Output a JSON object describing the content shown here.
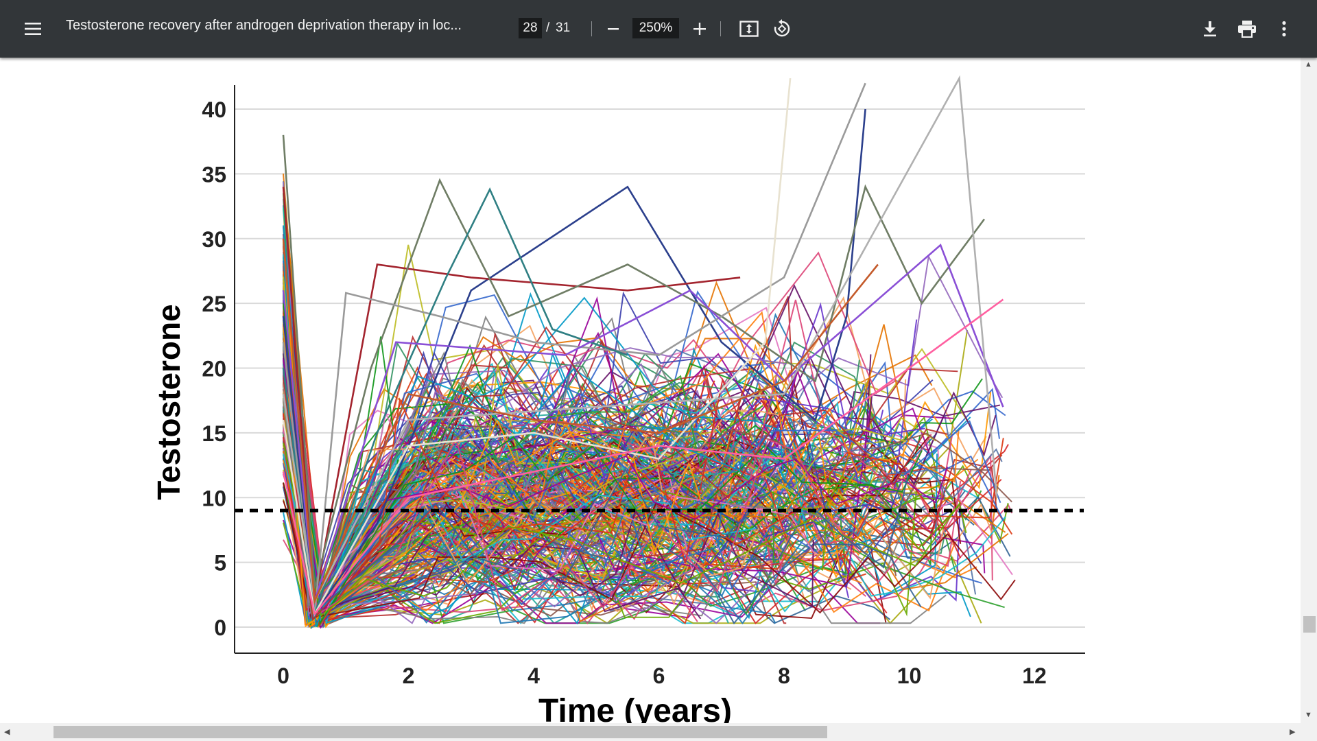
{
  "toolbar": {
    "menu_icon": "hamburger-menu-icon",
    "title": "Testosterone recovery after androgen deprivation therapy in loc...",
    "current_page": "28",
    "page_separator": "/",
    "total_pages": "31",
    "zoom_level": "250%",
    "zoom_out_icon": "minus-icon",
    "zoom_in_icon": "plus-icon",
    "fit_icon": "fit-to-page-icon",
    "rotate_icon": "rotate-icon",
    "download_icon": "download-icon",
    "print_icon": "print-icon",
    "more_icon": "more-vertical-icon",
    "color": "#323639"
  },
  "chart_data": {
    "type": "line",
    "title": "",
    "xlabel": "Time (years)",
    "ylabel": "Testosterone",
    "xlim": [
      -0.8,
      12.8
    ],
    "ylim": [
      -2,
      41
    ],
    "x_ticks": [
      "0",
      "2",
      "4",
      "6",
      "8",
      "10",
      "12"
    ],
    "y_ticks": [
      "0",
      "5",
      "10",
      "15",
      "20",
      "25",
      "30",
      "35",
      "40"
    ],
    "grid": "horizontal",
    "reference_line": {
      "y": 9,
      "style": "dashed",
      "color": "#000000"
    },
    "series_note_count": 320,
    "highlight_series": [
      {
        "color": "#2b3f8c",
        "x": [
          0,
          0.5,
          1.5,
          3,
          5.5,
          7,
          8.5,
          9,
          9.3
        ],
        "y": [
          24,
          1,
          8,
          26,
          34,
          22,
          16,
          24,
          40
        ]
      },
      {
        "color": "#a3242e",
        "x": [
          0,
          0.5,
          1.5,
          3,
          5.5,
          7.3
        ],
        "y": [
          34,
          2,
          28,
          27,
          26,
          27
        ]
      },
      {
        "color": "#6f7d65",
        "x": [
          0,
          0.5,
          1.4,
          2.5,
          3.6,
          5.5,
          7,
          8.5,
          9.3,
          10.2,
          11.2
        ],
        "y": [
          38,
          3,
          20,
          34.5,
          24,
          28,
          24,
          19,
          34,
          25,
          31.5
        ]
      },
      {
        "color": "#9a9a9a",
        "x": [
          0,
          0.5,
          1,
          2.5,
          4,
          6,
          8,
          9.3
        ],
        "y": [
          22,
          1,
          25.8,
          24,
          22,
          21,
          27,
          42
        ]
      },
      {
        "color": "#2f7f83",
        "x": [
          0,
          0.5,
          1.5,
          2.6,
          3.3,
          4.3,
          5.5
        ],
        "y": [
          20,
          1,
          15,
          27,
          33.8,
          23,
          21
        ]
      },
      {
        "color": "#8a4fd6",
        "x": [
          0,
          0.5,
          1.8,
          4.5,
          6.5,
          8,
          10.5,
          11.5
        ],
        "y": [
          26,
          2,
          22,
          21,
          26,
          19,
          29.5,
          17
        ]
      },
      {
        "color": "#b0b0b0",
        "x": [
          0,
          0.5,
          2,
          5,
          8,
          10.8,
          11.4
        ],
        "y": [
          18,
          2,
          16,
          17,
          18,
          43,
          10
        ]
      },
      {
        "color": "#e8e2d0",
        "x": [
          0,
          0.5,
          2,
          4,
          6,
          7.7,
          8.1
        ],
        "y": [
          16,
          1,
          14,
          15,
          13,
          22,
          43
        ]
      },
      {
        "color": "#c45a2a",
        "x": [
          0,
          0.5,
          2,
          4,
          6,
          8,
          9.5
        ],
        "y": [
          30,
          2,
          18,
          16,
          15,
          19,
          28
        ]
      },
      {
        "color": "#ff5fa0",
        "x": [
          0,
          0.5,
          2,
          4,
          6,
          8,
          10,
          11.5
        ],
        "y": [
          12,
          1,
          10,
          12,
          14,
          13,
          20,
          25.3
        ]
      }
    ]
  }
}
